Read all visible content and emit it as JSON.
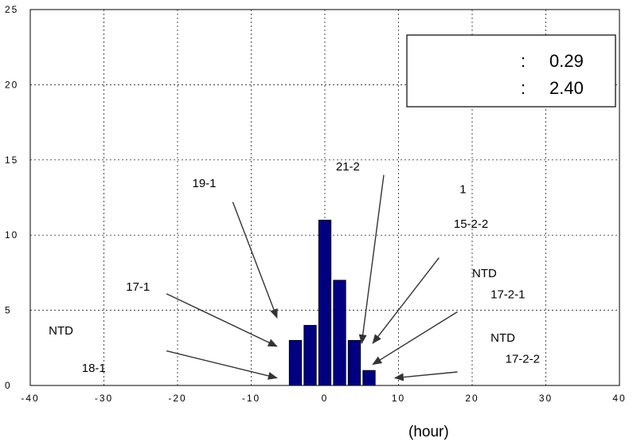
{
  "chart_data": {
    "type": "bar",
    "xlabel": "(hour)",
    "ylabel": "",
    "xlim": [
      -40,
      40
    ],
    "ylim": [
      0,
      25
    ],
    "x_ticks": [
      -40,
      -30,
      -20,
      -10,
      0,
      10,
      20,
      30,
      40
    ],
    "y_ticks": [
      0,
      5,
      10,
      15,
      20,
      25
    ],
    "grid": true,
    "bar_color": "#000080",
    "bars": [
      {
        "x": -4,
        "value": 3
      },
      {
        "x": -2,
        "value": 4
      },
      {
        "x": 0,
        "value": 11
      },
      {
        "x": 2,
        "value": 7
      },
      {
        "x": 4,
        "value": 3
      },
      {
        "x": 6,
        "value": 1
      }
    ],
    "stats_box": [
      "0.29",
      "2.40"
    ],
    "annotations": [
      {
        "lines": [
          "19-1"
        ],
        "data_pos": [
          -18,
          13.2
        ],
        "arrow_from": [
          -12.5,
          12.2
        ],
        "arrow_to": [
          -6.5,
          4.5
        ]
      },
      {
        "lines": [
          "17-1"
        ],
        "data_pos": [
          -27,
          6.3
        ],
        "arrow_from": [
          -21.5,
          6.1
        ],
        "arrow_to": [
          -6.5,
          2.6
        ]
      },
      {
        "lines": [
          "NTD"
        ],
        "data_pos": [
          -37.5,
          3.4
        ],
        "arrow_from": [
          -21.5,
          2.3
        ],
        "arrow_to": [
          -6.5,
          0.5
        ]
      },
      {
        "lines": [
          "18-1"
        ],
        "data_pos": [
          -33,
          0.9
        ]
      },
      {
        "lines": [
          "21-2"
        ],
        "data_pos": [
          1.5,
          14.3
        ],
        "arrow_from": [
          8,
          14
        ],
        "arrow_to": [
          5,
          2.8
        ]
      },
      {
        "lines": [
          "1"
        ],
        "data_pos": [
          18.3,
          12.8
        ]
      },
      {
        "lines": [
          "15-2-2"
        ],
        "data_pos": [
          17.5,
          10.5
        ],
        "arrow_from": [
          15.5,
          8.5
        ],
        "arrow_to": [
          6.5,
          2.8
        ]
      },
      {
        "lines": [
          "NTD"
        ],
        "data_pos": [
          20,
          7.2
        ]
      },
      {
        "lines": [
          "17-2-1"
        ],
        "data_pos": [
          22.5,
          5.8
        ],
        "arrow_from": [
          18,
          4.9
        ],
        "arrow_to": [
          6.5,
          1.4
        ]
      },
      {
        "lines": [
          "NTD"
        ],
        "data_pos": [
          22.5,
          2.9
        ]
      },
      {
        "lines": [
          "17-2-2"
        ],
        "data_pos": [
          24.5,
          1.5
        ],
        "arrow_from": [
          18,
          0.9
        ],
        "arrow_to": [
          9.5,
          0.5
        ]
      }
    ]
  }
}
